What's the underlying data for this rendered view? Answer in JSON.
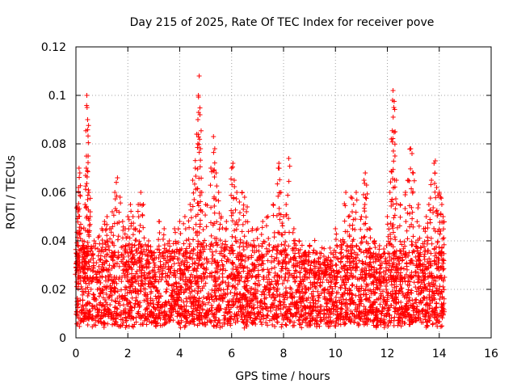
{
  "chart_data": {
    "type": "scatter",
    "title": "Day 215 of 2025, Rate Of TEC Index for receiver pove",
    "xlabel": "GPS time / hours",
    "ylabel": "ROTI / TECUs",
    "xlim": [
      0,
      16
    ],
    "ylim": [
      0,
      0.12
    ],
    "x_ticks": [
      0,
      2,
      4,
      6,
      8,
      10,
      12,
      14,
      16
    ],
    "y_ticks": [
      0,
      0.02,
      0.04,
      0.06,
      0.08,
      0.1,
      0.12
    ],
    "x_tick_labels": [
      "0",
      "2",
      "4",
      "6",
      "8",
      "10",
      "12",
      "14",
      "16"
    ],
    "y_tick_labels": [
      "0",
      "0.02",
      "0.04",
      "0.06",
      "0.08",
      "0.1",
      "0.12"
    ],
    "grid": true,
    "marker": "+",
    "marker_color": "#ff0000",
    "series": [
      {
        "name": "ROTI",
        "points": [
          [
            0.02,
            0.035
          ],
          [
            0.05,
            0.054
          ],
          [
            0.08,
            0.052
          ],
          [
            0.1,
            0.062
          ],
          [
            0.12,
            0.07
          ],
          [
            0.15,
            0.068
          ],
          [
            0.2,
            0.045
          ],
          [
            0.25,
            0.04
          ],
          [
            0.3,
            0.038
          ],
          [
            0.35,
            0.055
          ],
          [
            0.4,
            0.07
          ],
          [
            0.42,
            0.1
          ],
          [
            0.43,
            0.095
          ],
          [
            0.45,
            0.09
          ],
          [
            0.47,
            0.075
          ],
          [
            0.5,
            0.06
          ],
          [
            0.55,
            0.05
          ],
          [
            0.7,
            0.04
          ],
          [
            0.9,
            0.042
          ],
          [
            1.0,
            0.045
          ],
          [
            1.1,
            0.048
          ],
          [
            1.2,
            0.05
          ],
          [
            1.3,
            0.045
          ],
          [
            1.4,
            0.052
          ],
          [
            1.5,
            0.06
          ],
          [
            1.6,
            0.066
          ],
          [
            1.7,
            0.058
          ],
          [
            1.8,
            0.048
          ],
          [
            1.9,
            0.045
          ],
          [
            2.0,
            0.05
          ],
          [
            2.1,
            0.055
          ],
          [
            2.2,
            0.05
          ],
          [
            2.3,
            0.045
          ],
          [
            2.4,
            0.055
          ],
          [
            2.5,
            0.06
          ],
          [
            2.6,
            0.055
          ],
          [
            2.8,
            0.04
          ],
          [
            3.0,
            0.035
          ],
          [
            3.2,
            0.048
          ],
          [
            3.4,
            0.045
          ],
          [
            3.6,
            0.04
          ],
          [
            3.8,
            0.045
          ],
          [
            4.0,
            0.048
          ],
          [
            4.2,
            0.05
          ],
          [
            4.4,
            0.055
          ],
          [
            4.5,
            0.065
          ],
          [
            4.6,
            0.07
          ],
          [
            4.65,
            0.084
          ],
          [
            4.7,
            0.09
          ],
          [
            4.72,
            0.1
          ],
          [
            4.75,
            0.108
          ],
          [
            4.78,
            0.092
          ],
          [
            4.8,
            0.078
          ],
          [
            4.85,
            0.06
          ],
          [
            5.0,
            0.055
          ],
          [
            5.2,
            0.07
          ],
          [
            5.3,
            0.083
          ],
          [
            5.35,
            0.078
          ],
          [
            5.4,
            0.068
          ],
          [
            5.5,
            0.06
          ],
          [
            5.6,
            0.05
          ],
          [
            5.8,
            0.048
          ],
          [
            6.0,
            0.07
          ],
          [
            6.05,
            0.072
          ],
          [
            6.1,
            0.065
          ],
          [
            6.2,
            0.06
          ],
          [
            6.3,
            0.056
          ],
          [
            6.4,
            0.06
          ],
          [
            6.5,
            0.058
          ],
          [
            6.6,
            0.054
          ],
          [
            6.8,
            0.045
          ],
          [
            7.0,
            0.045
          ],
          [
            7.2,
            0.048
          ],
          [
            7.4,
            0.05
          ],
          [
            7.6,
            0.055
          ],
          [
            7.8,
            0.07
          ],
          [
            7.82,
            0.072
          ],
          [
            7.9,
            0.06
          ],
          [
            8.0,
            0.05
          ],
          [
            8.1,
            0.055
          ],
          [
            8.2,
            0.074
          ],
          [
            8.4,
            0.045
          ],
          [
            8.6,
            0.04
          ],
          [
            8.8,
            0.035
          ],
          [
            9.0,
            0.038
          ],
          [
            9.2,
            0.032
          ],
          [
            9.4,
            0.035
          ],
          [
            9.6,
            0.03
          ],
          [
            9.8,
            0.032
          ],
          [
            10.0,
            0.045
          ],
          [
            10.2,
            0.04
          ],
          [
            10.4,
            0.06
          ],
          [
            10.5,
            0.05
          ],
          [
            10.6,
            0.058
          ],
          [
            10.7,
            0.055
          ],
          [
            10.8,
            0.06
          ],
          [
            11.0,
            0.05
          ],
          [
            11.1,
            0.065
          ],
          [
            11.15,
            0.068
          ],
          [
            11.2,
            0.063
          ],
          [
            11.3,
            0.045
          ],
          [
            11.5,
            0.04
          ],
          [
            11.7,
            0.038
          ],
          [
            11.9,
            0.035
          ],
          [
            12.0,
            0.05
          ],
          [
            12.1,
            0.06
          ],
          [
            12.15,
            0.082
          ],
          [
            12.2,
            0.098
          ],
          [
            12.22,
            0.102
          ],
          [
            12.25,
            0.095
          ],
          [
            12.3,
            0.085
          ],
          [
            12.35,
            0.065
          ],
          [
            12.5,
            0.055
          ],
          [
            12.7,
            0.06
          ],
          [
            12.8,
            0.065
          ],
          [
            12.9,
            0.078
          ],
          [
            12.95,
            0.076
          ],
          [
            13.0,
            0.068
          ],
          [
            13.2,
            0.055
          ],
          [
            13.4,
            0.045
          ],
          [
            13.5,
            0.05
          ],
          [
            13.6,
            0.055
          ],
          [
            13.7,
            0.065
          ],
          [
            13.8,
            0.072
          ],
          [
            13.85,
            0.073
          ],
          [
            13.9,
            0.062
          ],
          [
            14.0,
            0.06
          ],
          [
            14.05,
            0.058
          ],
          [
            14.1,
            0.055
          ],
          [
            14.15,
            0.05
          ]
        ],
        "baseline_band": {
          "x": [
            0,
            14.2
          ],
          "y": [
            0.004,
            0.035
          ]
        }
      }
    ]
  }
}
